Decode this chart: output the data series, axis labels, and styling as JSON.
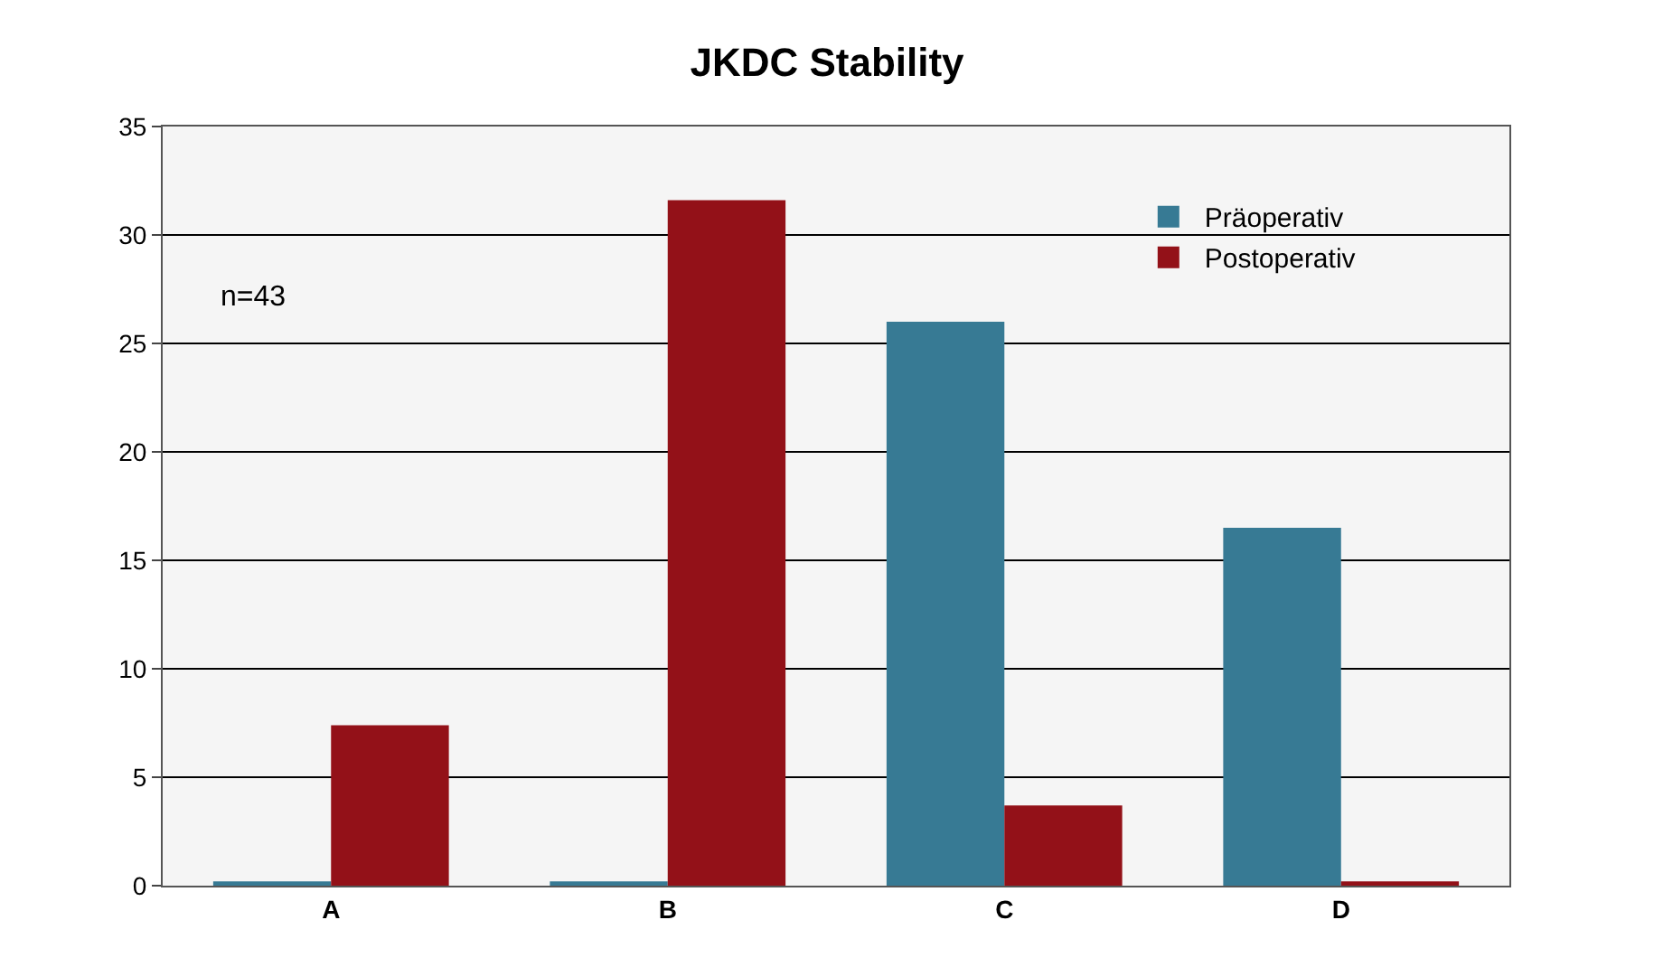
{
  "chart_data": {
    "type": "bar",
    "title": "JKDC Stability",
    "categories": [
      "A",
      "B",
      "C",
      "D"
    ],
    "series": [
      {
        "name": "Präoperativ",
        "color": "#377a94",
        "values": [
          0.2,
          0.2,
          26.0,
          16.5
        ]
      },
      {
        "name": "Postoperativ",
        "color": "#931118",
        "values": [
          7.4,
          31.6,
          3.7,
          0.2
        ]
      }
    ],
    "ylim": [
      0,
      35
    ],
    "yticks": [
      0,
      5,
      10,
      15,
      20,
      25,
      30,
      35
    ],
    "grid": "y",
    "legend": "top right",
    "annotations": [
      "n=43"
    ]
  }
}
